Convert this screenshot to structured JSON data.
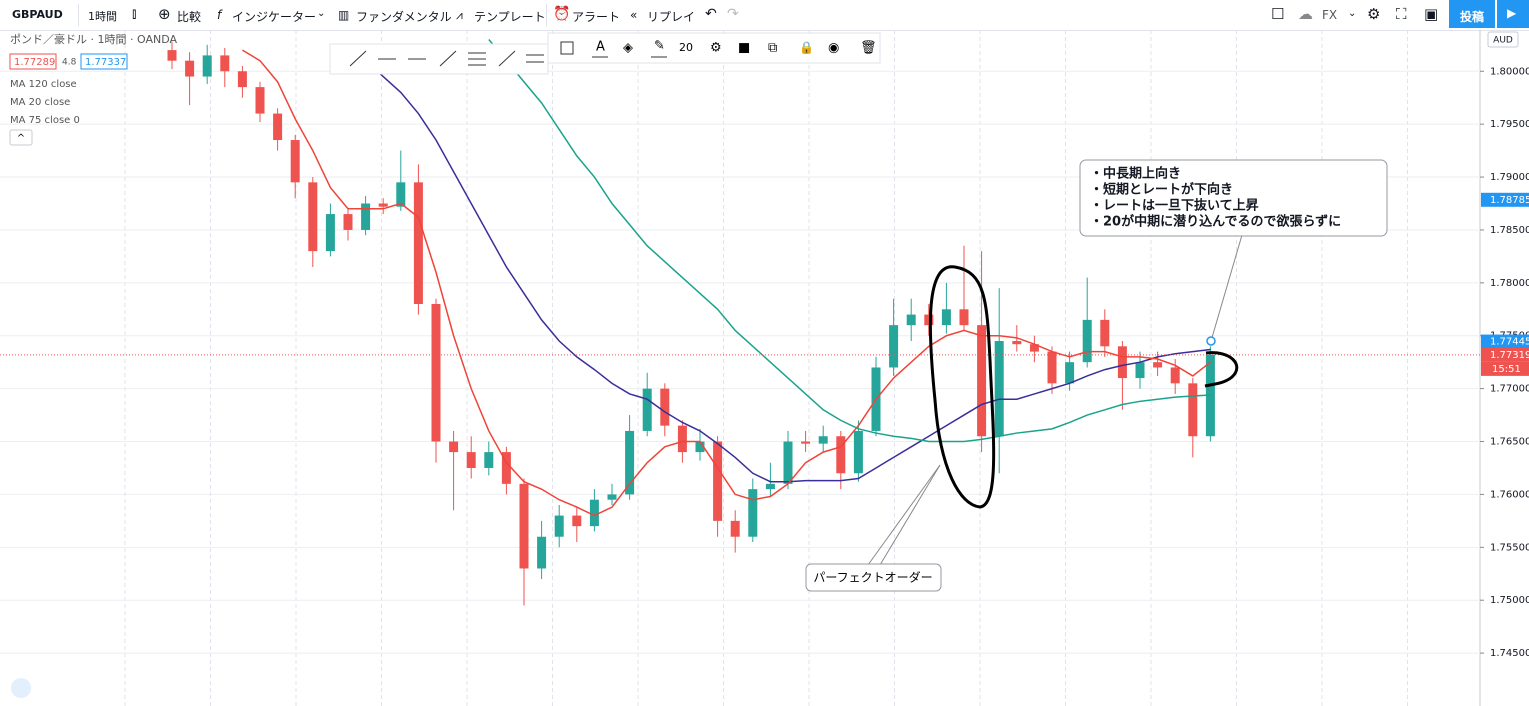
{
  "toolbar": {
    "symbol": "GBPAUD",
    "interval": "1時間",
    "compare": "比較",
    "indicators": "インジケーター",
    "fundamentals": "ファンダメンタル",
    "templates": "テンプレート",
    "alert": "アラート",
    "replay": "リプレイ",
    "market": "FX",
    "publish": "投稿"
  },
  "legend": {
    "title": "ポンド／豪ドル · 1時間 · OANDA",
    "bid": 1.77289,
    "spread": 4.8,
    "ask": 1.77337
  },
  "drawing_toolbar": {
    "font_size": 20
  },
  "chart_data": {
    "type": "candlestick",
    "currency": "AUD",
    "ylim": [
      1.74,
      1.8039
    ],
    "yticks": [
      {
        "value": 1.745,
        "label": "1.74500"
      },
      {
        "value": 1.75,
        "label": "1.75000"
      },
      {
        "value": 1.755,
        "label": "1.75500"
      },
      {
        "value": 1.76,
        "label": "1.76000"
      },
      {
        "value": 1.765,
        "label": "1.76500"
      },
      {
        "value": 1.77,
        "label": "1.77000"
      },
      {
        "value": 1.775,
        "label": "1.77500"
      },
      {
        "value": 1.78,
        "label": "1.78000"
      },
      {
        "value": 1.785,
        "label": "1.78500"
      },
      {
        "value": 1.79,
        "label": "1.79000"
      },
      {
        "value": 1.795,
        "label": "1.79500"
      },
      {
        "value": 1.8,
        "label": "1.80000"
      }
    ],
    "grid": true,
    "up_color": "#26a69a",
    "down_color": "#ef5350",
    "open": [
      1.802,
      1.801,
      1.7995,
      1.8015,
      1.8,
      1.7985,
      1.796,
      1.7935,
      1.7895,
      1.783,
      1.7865,
      1.785,
      1.7875,
      1.7872,
      1.7895,
      1.778,
      1.765,
      1.764,
      1.7625,
      1.764,
      1.761,
      1.753,
      1.756,
      1.758,
      1.757,
      1.7595,
      1.76,
      1.766,
      1.77,
      1.7665,
      1.764,
      1.765,
      1.7575,
      1.756,
      1.7605,
      1.761,
      1.765,
      1.7648,
      1.7655,
      1.762,
      1.766,
      1.772,
      1.776,
      1.777,
      1.776,
      1.7775,
      1.776,
      1.7655,
      1.7745,
      1.7742,
      1.7735,
      1.7705,
      1.7725,
      1.7765,
      1.774,
      1.771,
      1.7725,
      1.772,
      1.7705,
      1.7655
    ],
    "high": [
      1.8028,
      1.8018,
      1.8025,
      1.8022,
      1.8005,
      1.799,
      1.7965,
      1.794,
      1.79,
      1.7875,
      1.787,
      1.7882,
      1.788,
      1.7925,
      1.7912,
      1.7785,
      1.766,
      1.7655,
      1.765,
      1.7645,
      1.7615,
      1.7575,
      1.759,
      1.7588,
      1.7605,
      1.761,
      1.7675,
      1.7715,
      1.7705,
      1.767,
      1.7662,
      1.7655,
      1.7585,
      1.7615,
      1.763,
      1.766,
      1.766,
      1.7665,
      1.766,
      1.767,
      1.773,
      1.7785,
      1.7785,
      1.778,
      1.78,
      1.7835,
      1.783,
      1.7795,
      1.776,
      1.775,
      1.774,
      1.7735,
      1.7805,
      1.7775,
      1.7745,
      1.7735,
      1.7735,
      1.7728,
      1.771,
      1.774
    ],
    "low": [
      1.8002,
      1.7968,
      1.7988,
      1.7985,
      1.7975,
      1.7952,
      1.7925,
      1.788,
      1.7815,
      1.7825,
      1.784,
      1.7845,
      1.7865,
      1.7868,
      1.777,
      1.763,
      1.7585,
      1.7615,
      1.7618,
      1.76,
      1.7495,
      1.752,
      1.755,
      1.7555,
      1.7565,
      1.759,
      1.7595,
      1.7655,
      1.7655,
      1.763,
      1.7632,
      1.756,
      1.7545,
      1.7555,
      1.7598,
      1.7605,
      1.764,
      1.764,
      1.7605,
      1.7612,
      1.7655,
      1.7712,
      1.7745,
      1.775,
      1.7752,
      1.7755,
      1.764,
      1.762,
      1.7735,
      1.7725,
      1.7695,
      1.7698,
      1.772,
      1.773,
      1.768,
      1.77,
      1.7712,
      1.7695,
      1.7635,
      1.765
    ],
    "close": [
      1.801,
      1.7995,
      1.8015,
      1.8,
      1.7985,
      1.796,
      1.7935,
      1.7895,
      1.783,
      1.7865,
      1.785,
      1.7875,
      1.7872,
      1.7895,
      1.778,
      1.765,
      1.764,
      1.7625,
      1.764,
      1.761,
      1.753,
      1.756,
      1.758,
      1.757,
      1.7595,
      1.76,
      1.766,
      1.77,
      1.7665,
      1.764,
      1.765,
      1.7575,
      1.756,
      1.7605,
      1.761,
      1.765,
      1.7648,
      1.7655,
      1.762,
      1.766,
      1.772,
      1.776,
      1.777,
      1.776,
      1.7775,
      1.776,
      1.7655,
      1.7745,
      1.7742,
      1.7735,
      1.7705,
      1.7725,
      1.7765,
      1.774,
      1.771,
      1.7725,
      1.772,
      1.7705,
      1.7655,
      1.7732
    ],
    "moving_averages": [
      {
        "name": "MA 120 close",
        "color": "#3a2f9a",
        "values": [
          null,
          null,
          null,
          null,
          null,
          null,
          null,
          null,
          null,
          null,
          1.8025,
          1.801,
          1.7995,
          1.798,
          1.796,
          1.7935,
          1.7905,
          1.7875,
          1.7845,
          1.7815,
          1.779,
          1.7765,
          1.7745,
          1.773,
          1.7718,
          1.7705,
          1.7695,
          1.769,
          1.7678,
          1.7668,
          1.766,
          1.7648,
          1.7635,
          1.762,
          1.7612,
          1.7612,
          1.7613,
          1.7613,
          1.7613,
          1.7615,
          1.7625,
          1.7635,
          1.7645,
          1.7655,
          1.7665,
          1.7675,
          1.7685,
          1.769,
          1.769,
          1.7695,
          1.77,
          1.7705,
          1.7712,
          1.7718,
          1.7722,
          1.7725,
          1.773,
          1.7733,
          1.7735,
          1.7737
        ]
      },
      {
        "name": "MA 20 close",
        "color": "#f04438",
        "values": [
          null,
          null,
          null,
          null,
          1.802,
          1.801,
          1.799,
          1.7955,
          1.7925,
          1.789,
          1.787,
          1.787,
          1.787,
          1.7875,
          1.7862,
          1.781,
          1.775,
          1.77,
          1.766,
          1.763,
          1.7612,
          1.7605,
          1.7595,
          1.7588,
          1.758,
          1.7588,
          1.761,
          1.763,
          1.7645,
          1.765,
          1.765,
          1.7625,
          1.76,
          1.7595,
          1.7598,
          1.761,
          1.763,
          1.764,
          1.7645,
          1.7665,
          1.769,
          1.771,
          1.7725,
          1.774,
          1.775,
          1.7755,
          1.775,
          1.775,
          1.7748,
          1.7742,
          1.7735,
          1.773,
          1.7735,
          1.7735,
          1.773,
          1.773,
          1.7728,
          1.7722,
          1.7712,
          1.7725
        ]
      },
      {
        "name": "MA 75 close 0",
        "color": "#1aa38c",
        "values": [
          null,
          null,
          null,
          null,
          null,
          null,
          null,
          null,
          null,
          null,
          null,
          null,
          null,
          null,
          null,
          null,
          null,
          null,
          1.803,
          1.801,
          1.799,
          1.797,
          1.7945,
          1.792,
          1.79,
          1.7875,
          1.7855,
          1.7835,
          1.782,
          1.7805,
          1.779,
          1.7775,
          1.7755,
          1.774,
          1.7725,
          1.771,
          1.7695,
          1.768,
          1.767,
          1.7662,
          1.7658,
          1.7655,
          1.7653,
          1.765,
          1.765,
          1.765,
          1.7652,
          1.7655,
          1.7658,
          1.766,
          1.7662,
          1.7668,
          1.7675,
          1.768,
          1.7685,
          1.7688,
          1.769,
          1.7692,
          1.7693,
          1.7694
        ]
      }
    ],
    "price_tags": [
      {
        "value": 1.78785,
        "color": "#2196f3"
      },
      {
        "value": 1.77445,
        "color": "#2196f3"
      },
      {
        "value": 1.77319,
        "color": "#ef5350"
      }
    ],
    "countdown": "15:51",
    "callout_lines": [
      "・中長期上向き",
      "・短期とレートが下向き",
      "・レートは一旦下抜いて上昇",
      "・20が中期に潜り込んでるので欲張らずに"
    ],
    "perfect_order_label": "パーフェクトオーダー"
  }
}
